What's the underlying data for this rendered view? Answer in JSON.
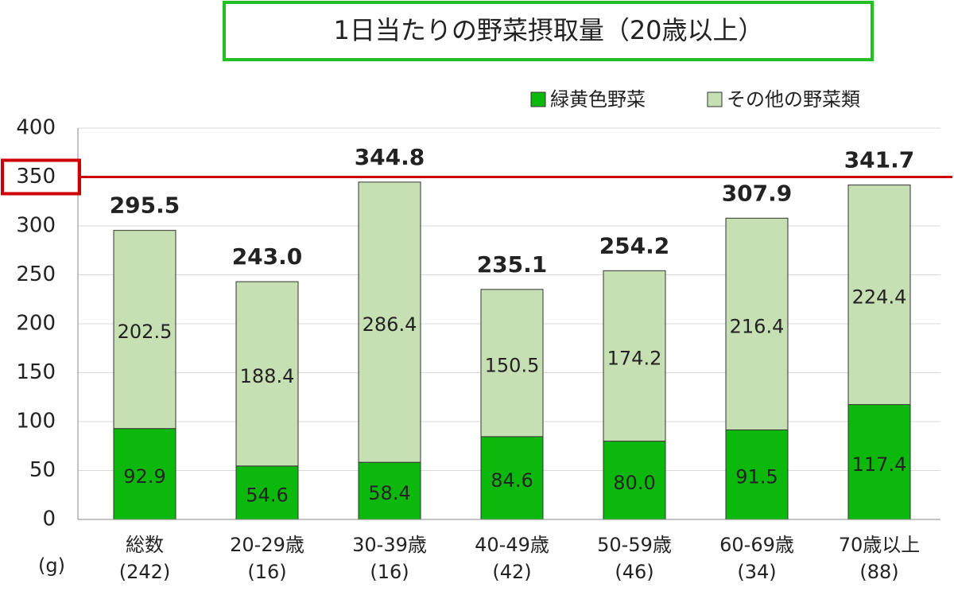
{
  "chart_data": {
    "type": "stacked_bar",
    "title": "1日当たりの野菜摂取量（20歳以上）",
    "y_unit": "(g)",
    "categories": [
      "総数",
      "20-29歳",
      "30-39歳",
      "40-49歳",
      "50-59歳",
      "60-69歳",
      "70歳以上"
    ],
    "category_counts": [
      "(242)",
      "(16)",
      "(16)",
      "(42)",
      "(46)",
      "(34)",
      "(88)"
    ],
    "series": [
      {
        "name": "緑黄色野菜",
        "color": "#0db80d",
        "values": [
          92.9,
          54.6,
          58.4,
          84.6,
          80.0,
          91.5,
          117.4
        ],
        "value_labels": [
          "92.9",
          "54.6",
          "58.4",
          "84.6",
          "80.0",
          "91.5",
          "117.4"
        ]
      },
      {
        "name": "その他の野菜類",
        "color": "#c6e0b4",
        "values": [
          202.5,
          188.4,
          286.4,
          150.5,
          174.2,
          216.4,
          224.4
        ],
        "value_labels": [
          "202.5",
          "188.4",
          "286.4",
          "150.5",
          "174.2",
          "216.4",
          "224.4"
        ]
      }
    ],
    "totals": {
      "values": [
        295.5,
        243.0,
        344.8,
        235.1,
        254.2,
        307.9,
        341.7
      ],
      "value_labels": [
        "295.5",
        "243.0",
        "344.8",
        "235.1",
        "254.2",
        "307.9",
        "341.7"
      ]
    },
    "reference_line": 350,
    "reference_color": "#cc0000",
    "ylim": [
      0,
      400
    ],
    "yticks": [
      0,
      50,
      100,
      150,
      200,
      250,
      300,
      350,
      400
    ],
    "grid": true
  }
}
